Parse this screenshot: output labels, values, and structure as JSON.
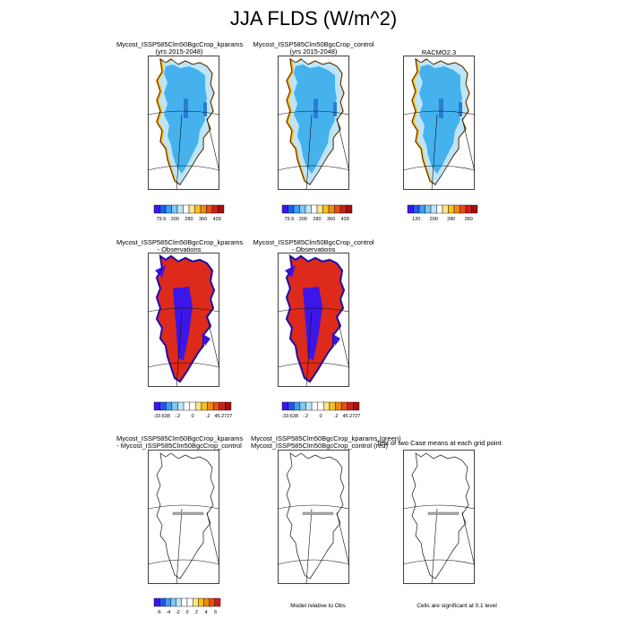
{
  "title": "JJA FLDS (W/m^2)",
  "colors": {
    "ice_lightblue": "#bfe4f7",
    "ice_blue": "#45b2ee",
    "ice_darkblue": "#2a7cd9",
    "coast_yellow": "#f6c21f",
    "coast_orange": "#f08a12",
    "diff_red": "#dd2a1a",
    "diff_blue": "#3c16e8",
    "line": "#111111"
  },
  "colorbars": {
    "abs": {
      "colors": [
        "#3a19e6",
        "#1f5ef0",
        "#3c9ef2",
        "#7ec7f4",
        "#bfe4f7",
        "#ffffff",
        "#fbe58a",
        "#f6c21f",
        "#f08a12",
        "#e4501a",
        "#cf1f1a",
        "#a01010"
      ],
      "labels": [
        "79.9",
        "200",
        "280",
        "360",
        "439"
      ]
    },
    "racmo": {
      "colors": [
        "#3a19e6",
        "#1f5ef0",
        "#3c9ef2",
        "#7ec7f4",
        "#bfe4f7",
        "#ffffff",
        "#fbe58a",
        "#f6c21f",
        "#f08a12",
        "#e4501a",
        "#cf1f1a",
        "#a01010"
      ],
      "labels": [
        "120",
        "200",
        "280",
        "360"
      ]
    },
    "diff": {
      "colors": [
        "#3a19e6",
        "#2b4ff0",
        "#3c9ef2",
        "#7ec7f4",
        "#bfe4f7",
        "#ffffff",
        "#ffffff",
        "#fbe58a",
        "#f6c21f",
        "#f08a12",
        "#e4501a",
        "#cf1f1a",
        "#a01010"
      ],
      "labels": [
        "-33.638",
        "-.2",
        "0",
        ".2",
        "45.2727"
      ]
    },
    "ttest": {
      "colors": [
        "#3a19e6",
        "#2b4ff0",
        "#3c9ef2",
        "#7ec7f4",
        "#bfe4f7",
        "#ffffff",
        "#ffffff",
        "#fbe58a",
        "#f6c21f",
        "#f08a12",
        "#e4501a",
        "#cf1f1a"
      ],
      "labels": [
        "-6",
        "-4",
        "-2",
        "0",
        "2",
        "4",
        "6"
      ]
    }
  },
  "panels": [
    {
      "title1": "Mycost_ISSP585Clm50BgcCrop_kparams",
      "title2": "(yrs 2015-2048)",
      "style": "abs"
    },
    {
      "title1": "Mycost_ISSP585Clm50BgcCrop_control",
      "title2": "(yrs 2015-2048)",
      "style": "abs"
    },
    {
      "title1": "RACMO2.3",
      "title2": "",
      "style": "abs"
    },
    {
      "title1": "Mycost_ISSP585Clm50BgcCrop_kparams",
      "title2": "- Observations",
      "style": "diff"
    },
    {
      "title1": "Mycost_ISSP585Clm50BgcCrop_control",
      "title2": "- Observations",
      "style": "diff"
    },
    {
      "title1": "Mycost_ISSP585Clm50BgcCrop_kparams",
      "title2": "- Mycost_ISSP585Clm50BgcCrop_control",
      "style": "empty"
    },
    {
      "title1": "Mycost_ISSP585Clm50BgcCrop_kparams (green)",
      "title2": "Mycost_ISSP585Clm50BgcCrop_control (red)",
      "style": "empty"
    },
    {
      "title1": "Test of two Case means at each grid point",
      "title2": "",
      "style": "empty"
    }
  ],
  "notes": {
    "model_relative": "Model relative to Obs",
    "cells_significant": "Cells are significant at 0.1 level"
  }
}
